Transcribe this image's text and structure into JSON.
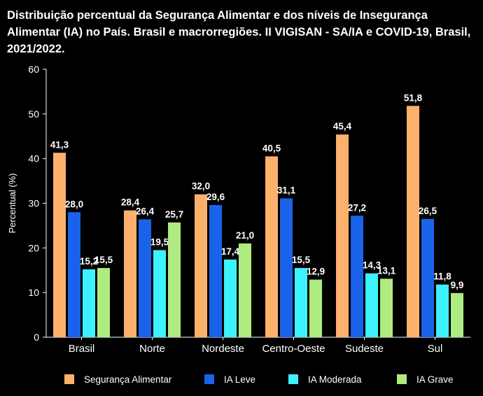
{
  "chart_data": {
    "type": "bar",
    "title": "Distribuição percentual da Segurança Alimentar e dos níveis de Insegurança Alimentar (IA) no País. Brasil e macrorregiões. II VIGISAN - SA/IA e COVID-19, Brasil, 2021/2022.",
    "ylabel": "Percentual (%)",
    "xlabel": "",
    "ylim": [
      0,
      60
    ],
    "yticks": [
      0,
      10,
      20,
      30,
      40,
      50,
      60
    ],
    "legend_position": "bottom",
    "grid": false,
    "categories": [
      "Brasil",
      "Norte",
      "Nordeste",
      "Centro-Oeste",
      "Sudeste",
      "Sul"
    ],
    "series": [
      {
        "name": "Segurança Alimentar",
        "color": "#FDB16C",
        "values": [
          41.3,
          28.4,
          32.0,
          40.5,
          45.4,
          51.8
        ],
        "labels": [
          "41,3",
          "28,4",
          "32,0",
          "40,5",
          "45,4",
          "51,8"
        ]
      },
      {
        "name": "IA Leve",
        "color": "#1A62EA",
        "values": [
          28.0,
          26.4,
          29.6,
          31.1,
          27.2,
          26.5
        ],
        "labels": [
          "28,0",
          "26,4",
          "29,6",
          "31,1",
          "27,2",
          "26,5"
        ]
      },
      {
        "name": "IA Moderada",
        "color": "#3DF2FC",
        "values": [
          15.2,
          19.5,
          17.4,
          15.5,
          14.3,
          11.8
        ],
        "labels": [
          "15,2",
          "19,5",
          "17,4",
          "15,5",
          "14,3",
          "11,8"
        ]
      },
      {
        "name": "IA Grave",
        "color": "#AEEB80",
        "values": [
          15.5,
          25.7,
          21.0,
          12.9,
          13.1,
          9.9
        ],
        "labels": [
          "15,5",
          "25,7",
          "21,0",
          "12,9",
          "13,1",
          "9,9"
        ]
      }
    ]
  }
}
